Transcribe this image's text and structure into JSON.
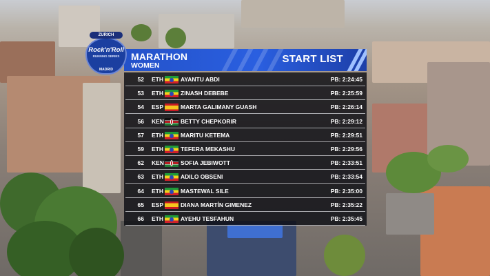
{
  "event_logo": {
    "sponsor": "ZURICH",
    "brand": "Rock'n'Roll",
    "series": "RUNNING SERIES",
    "city": "MADRID"
  },
  "header": {
    "title": "MARATHON",
    "subtitle": "WOMEN",
    "list_label": "START LIST"
  },
  "rows": [
    {
      "bib": "52",
      "nat": "ETH",
      "flag": "ethiopia-flag",
      "name": "AYANTU ABDI",
      "pb": "PB: 2:24:45"
    },
    {
      "bib": "53",
      "nat": "ETH",
      "flag": "ethiopia-flag",
      "name": "ZINASH DEBEBE",
      "pb": "PB: 2:25:59"
    },
    {
      "bib": "54",
      "nat": "ESP",
      "flag": "spain-flag",
      "name": "MARTA GALIMANY GUASH",
      "pb": "PB: 2:26:14"
    },
    {
      "bib": "56",
      "nat": "KEN",
      "flag": "kenya-flag",
      "name": "BETTY CHEPKORIR",
      "pb": "PB: 2:29:12"
    },
    {
      "bib": "57",
      "nat": "ETH",
      "flag": "ethiopia-flag",
      "name": "MARITU KETEMA",
      "pb": "PB: 2:29:51"
    },
    {
      "bib": "59",
      "nat": "ETH",
      "flag": "ethiopia-flag",
      "name": "TEFERA MEKASHU",
      "pb": "PB: 2:29:56"
    },
    {
      "bib": "62",
      "nat": "KEN",
      "flag": "kenya-flag",
      "name": "SOFIA JEBIWOTT",
      "pb": "PB: 2:33:51"
    },
    {
      "bib": "63",
      "nat": "ETH",
      "flag": "ethiopia-flag",
      "name": "ADILO OBSENI",
      "pb": "PB: 2:33:54"
    },
    {
      "bib": "64",
      "nat": "ETH",
      "flag": "ethiopia-flag",
      "name": "MASTEWAL SILE",
      "pb": "PB: 2:35:00"
    },
    {
      "bib": "65",
      "nat": "ESP",
      "flag": "spain-flag",
      "name": "DIANA MARTÍN GIMENEZ",
      "pb": "PB: 2:35:22"
    },
    {
      "bib": "66",
      "nat": "ETH",
      "flag": "ethiopia-flag",
      "name": "AYEHU TESFAHUN",
      "pb": "PB: 2:35:45"
    }
  ],
  "colors": {
    "header_blue": "#2452c9",
    "panel": "#0c0e14",
    "divider": "#a8a9ad"
  }
}
